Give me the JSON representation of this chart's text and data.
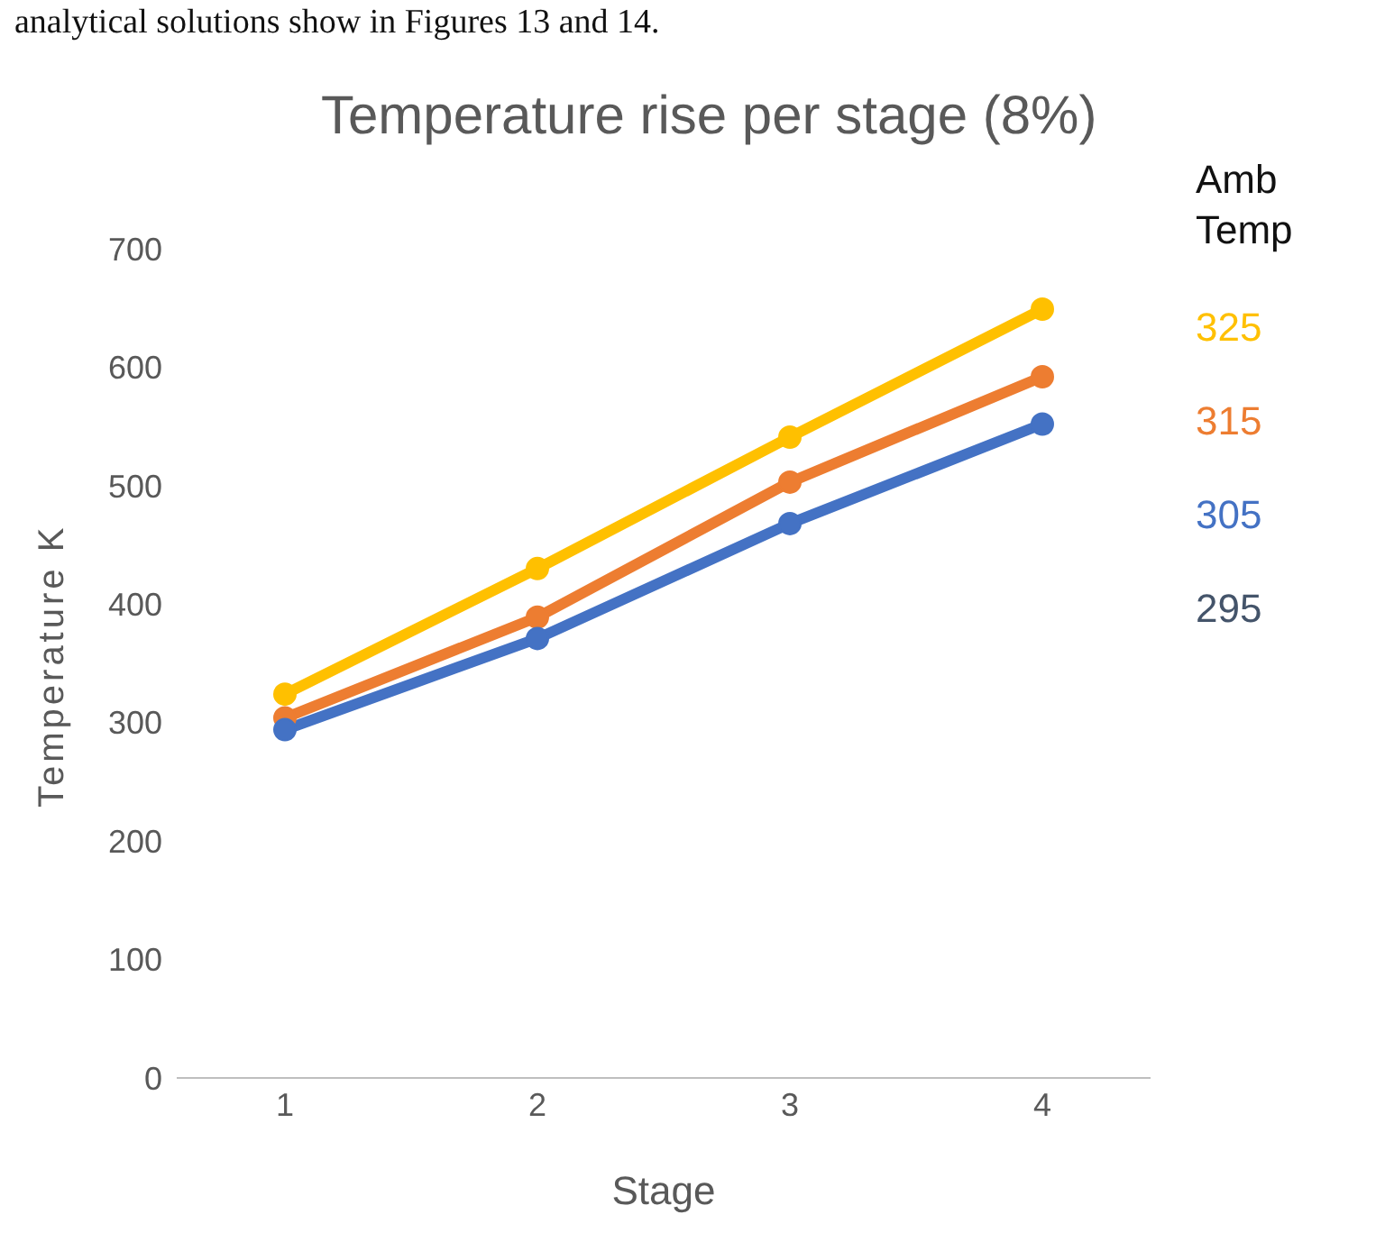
{
  "chart_data": {
    "type": "line",
    "title": "Temperature rise per stage (8%)",
    "xlabel": "Stage",
    "ylabel": "Temperature K",
    "legend_title": "Amb Temp",
    "legend": "right",
    "annotations": [
      "analytical solutions show in Figures 13 and 14.",
      "295"
    ],
    "categories": [
      "1",
      "2",
      "3",
      "4"
    ],
    "series": [
      {
        "name": "325",
        "color": "#ffc000",
        "values": [
          324,
          430,
          541,
          649
        ]
      },
      {
        "name": "315",
        "color": "#ed7d31",
        "values": [
          304,
          389,
          503,
          592
        ]
      },
      {
        "name": "305",
        "color": "#4472c4",
        "values": [
          294,
          371,
          468,
          552
        ]
      }
    ],
    "ylim": [
      0,
      700
    ],
    "yticks": [
      0,
      100,
      200,
      300,
      400,
      500,
      600,
      700
    ],
    "grid": false,
    "marker": "circle",
    "line_style": "solid"
  }
}
